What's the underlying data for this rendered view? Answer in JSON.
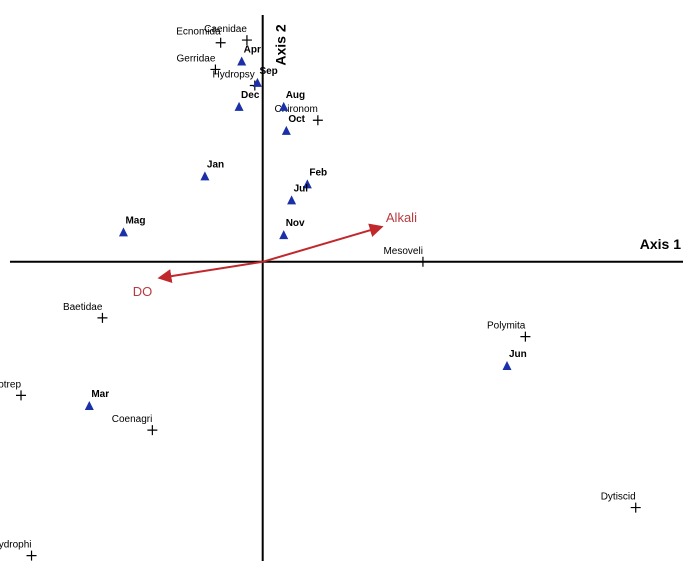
{
  "chart_data": {
    "type": "scatter",
    "title": "",
    "xlabel": "Axis 1",
    "ylabel": "Axis 2",
    "xlim": [
      -1.0,
      1.6
    ],
    "ylim": [
      -1.12,
      0.98
    ],
    "grid": false,
    "legend": "none",
    "colors": {
      "axis": "#000000",
      "month_marker": "#1a2fa8",
      "taxon_marker": "#000000",
      "vector": "#c0282c",
      "vector_label": "#b83a3e"
    },
    "series": [
      {
        "marker": "triangle",
        "points": [
          {
            "label": "Apr",
            "x": -0.08,
            "y": 0.75
          },
          {
            "label": "Sep",
            "x": -0.02,
            "y": 0.67
          },
          {
            "label": "Dec",
            "x": -0.09,
            "y": 0.58
          },
          {
            "label": "Aug",
            "x": 0.08,
            "y": 0.58
          },
          {
            "label": "Oct",
            "x": 0.09,
            "y": 0.49
          },
          {
            "label": "Jan",
            "x": -0.22,
            "y": 0.32
          },
          {
            "label": "Feb",
            "x": 0.17,
            "y": 0.29
          },
          {
            "label": "Jul",
            "x": 0.11,
            "y": 0.23
          },
          {
            "label": "Mag",
            "x": -0.53,
            "y": 0.11
          },
          {
            "label": "Nov",
            "x": 0.08,
            "y": 0.1
          },
          {
            "label": "Jun",
            "x": 0.93,
            "y": -0.39
          },
          {
            "label": "Mar",
            "x": -0.66,
            "y": -0.54
          }
        ]
      },
      {
        "marker": "plus",
        "points": [
          {
            "label": "Caenidae",
            "x": -0.06,
            "y": 0.83
          },
          {
            "label": "Ecnomida",
            "x": -0.16,
            "y": 0.82
          },
          {
            "label": "Gerridae",
            "x": -0.18,
            "y": 0.72
          },
          {
            "label": "Hydropsy",
            "x": -0.03,
            "y": 0.66
          },
          {
            "label": "Chironom",
            "x": 0.21,
            "y": 0.53
          },
          {
            "label": "Mesoveli",
            "x": 0.61,
            "y": 0.0
          },
          {
            "label": "Baetidae",
            "x": -0.61,
            "y": -0.21
          },
          {
            "label": "Polymita",
            "x": 1.0,
            "y": -0.28
          },
          {
            "label": "Helotrep",
            "x": -0.92,
            "y": -0.5
          },
          {
            "label": "Coenagri",
            "x": -0.42,
            "y": -0.63
          },
          {
            "label": "Dytiscid",
            "x": 1.42,
            "y": -0.92
          },
          {
            "label": "Hydrophi",
            "x": -0.88,
            "y": -1.1
          }
        ]
      }
    ],
    "vectors": [
      {
        "label": "Alkali",
        "x": 0.45,
        "y": 0.13
      },
      {
        "label": "DO",
        "x": -0.39,
        "y": -0.06
      }
    ]
  }
}
